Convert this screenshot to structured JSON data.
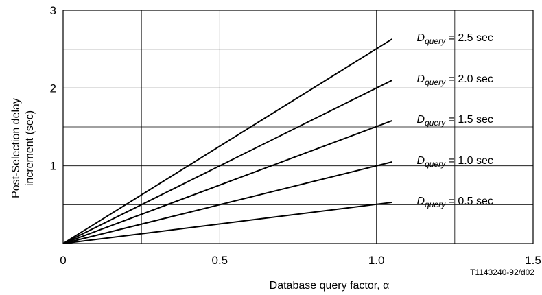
{
  "chart_data": {
    "type": "line",
    "xlabel_text": "Database query factor, ",
    "xlabel_symbol": "α",
    "ylabel_lines": [
      "Post-Selection delay",
      "increment (sec)"
    ],
    "xlim": [
      0,
      1.5
    ],
    "ylim": [
      0,
      3
    ],
    "x_ticks": [
      {
        "value": 0,
        "label": "0"
      },
      {
        "value": 0.5,
        "label": "0.5"
      },
      {
        "value": 1.0,
        "label": "1.0"
      },
      {
        "value": 1.5,
        "label": "1.5"
      }
    ],
    "y_ticks": [
      {
        "value": 1,
        "label": "1"
      },
      {
        "value": 2,
        "label": "2"
      },
      {
        "value": 3,
        "label": "3"
      }
    ],
    "x_grid": [
      0.25,
      0.5,
      0.75,
      1.0,
      1.25,
      1.5
    ],
    "y_grid": [
      0.5,
      1.0,
      1.5,
      2.0,
      2.5,
      3.0
    ],
    "grid": true,
    "series": [
      {
        "name_main": "D",
        "name_sub": "query",
        "name_rest": " = 2.5 sec",
        "x": [
          0,
          1.05
        ],
        "y": [
          0,
          2.63
        ]
      },
      {
        "name_main": "D",
        "name_sub": "query",
        "name_rest": " = 2.0 sec",
        "x": [
          0,
          1.05
        ],
        "y": [
          0,
          2.1
        ]
      },
      {
        "name_main": "D",
        "name_sub": "query",
        "name_rest": " = 1.5 sec",
        "x": [
          0,
          1.05
        ],
        "y": [
          0,
          1.58
        ]
      },
      {
        "name_main": "D",
        "name_sub": "query",
        "name_rest": " = 1.0 sec",
        "x": [
          0,
          1.05
        ],
        "y": [
          0,
          1.05
        ]
      },
      {
        "name_main": "D",
        "name_sub": "query",
        "name_rest": " = 0.5 sec",
        "x": [
          0,
          1.05
        ],
        "y": [
          0,
          0.53
        ]
      }
    ],
    "reference_code": "T1143240-92/d02"
  }
}
